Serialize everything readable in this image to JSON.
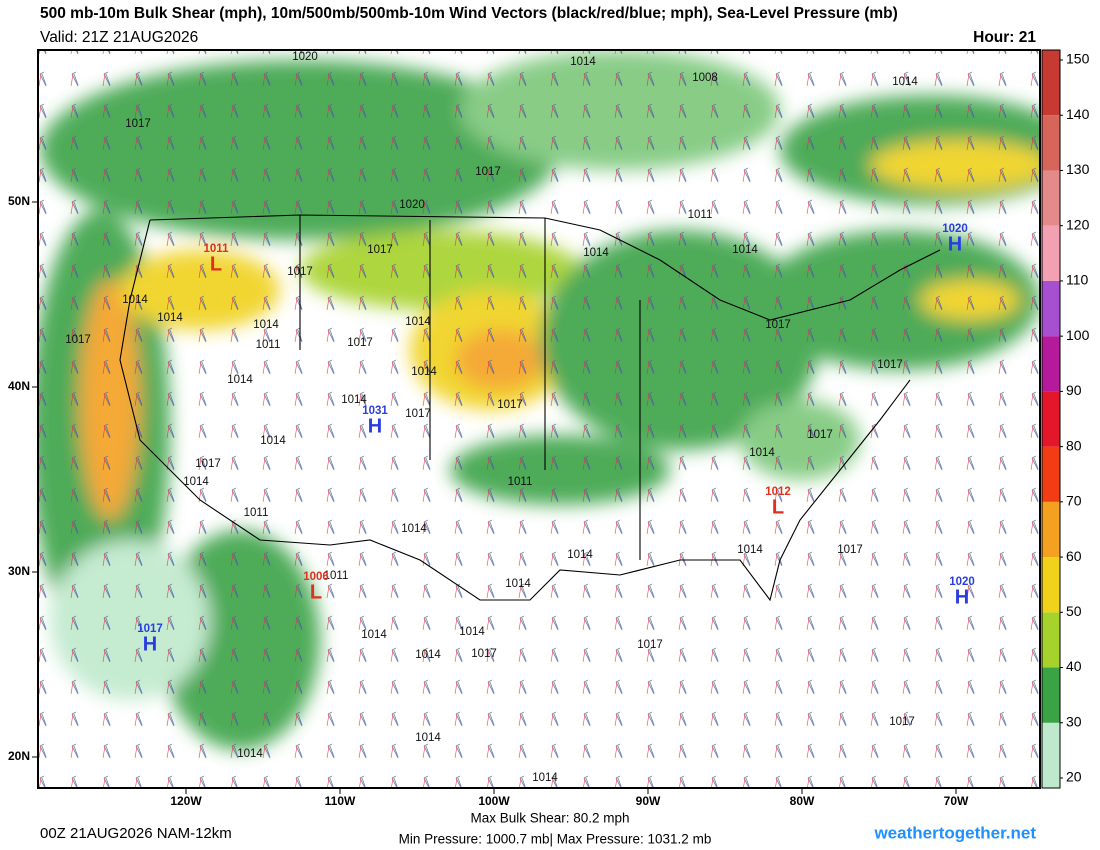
{
  "header": {
    "title": "500 mb-10m Bulk Shear (mph), 10m/500mb/500mb-10m Wind Vectors (black/red/blue; mph), Sea-Level Pressure (mb)",
    "valid": "Valid: 21Z 21AUG2026",
    "hour": "Hour: 21"
  },
  "map": {
    "lat_ticks": [
      {
        "value": 50,
        "label": "50N"
      },
      {
        "value": 40,
        "label": "40N"
      },
      {
        "value": 30,
        "label": "30N"
      },
      {
        "value": 20,
        "label": "20N"
      }
    ],
    "lon_ticks": [
      {
        "value": -120,
        "label": "120W"
      },
      {
        "value": -110,
        "label": "110W"
      },
      {
        "value": -100,
        "label": "100W"
      },
      {
        "value": -90,
        "label": "90W"
      },
      {
        "value": -80,
        "label": "80W"
      },
      {
        "value": -70,
        "label": "70W"
      }
    ],
    "pressure_centers": [
      {
        "kind": "H",
        "pressure": 1031,
        "color": "#2a3ee0"
      },
      {
        "kind": "H",
        "pressure": 1020,
        "color": "#2a3ee0"
      },
      {
        "kind": "H",
        "pressure": 1020,
        "color": "#2a3ee0"
      },
      {
        "kind": "H",
        "pressure": 1017,
        "color": "#2a3ee0"
      },
      {
        "kind": "L",
        "pressure": 1011,
        "color": "#e0301e"
      },
      {
        "kind": "L",
        "pressure": 1012,
        "color": "#e0301e"
      },
      {
        "kind": "L",
        "pressure": 1006,
        "color": "#e0301e"
      }
    ],
    "isobar_labels": [
      1020,
      1014,
      1008,
      1014,
      1017,
      1017,
      1020,
      1011,
      1014,
      1014,
      1017,
      1017,
      1014,
      1014,
      1014,
      1014,
      1017,
      1011,
      1017,
      1017,
      1014,
      1014,
      1014,
      1017,
      1017,
      1017,
      1014,
      1017,
      1014,
      1017,
      1014,
      1011,
      1011,
      1014,
      1014,
      1014,
      1017,
      1011,
      1014,
      1014,
      1014,
      1014,
      1017,
      1017,
      1014,
      1014,
      1017,
      1014
    ]
  },
  "colorbar": {
    "clim": [
      20,
      150
    ],
    "ticks": [
      150,
      140,
      130,
      120,
      110,
      100,
      90,
      80,
      70,
      60,
      50,
      40,
      30,
      20
    ],
    "colors": [
      "#bfe9cc",
      "#3aa346",
      "#a6d22c",
      "#f0d21a",
      "#f4a020",
      "#f23c14",
      "#e4162a",
      "#b61a9c",
      "#a64fd0",
      "#f2a0b2",
      "#e48a8a",
      "#d8655a",
      "#c63a32"
    ]
  },
  "footer": {
    "run": "00Z 21AUG2026 NAM-12km",
    "max_shear": "Max Bulk Shear:  80.2 mph",
    "pressure_range": "Min Pressure: 1000.7 mb| Max Pressure: 1031.2 mb",
    "site": "weathertogether.net"
  }
}
